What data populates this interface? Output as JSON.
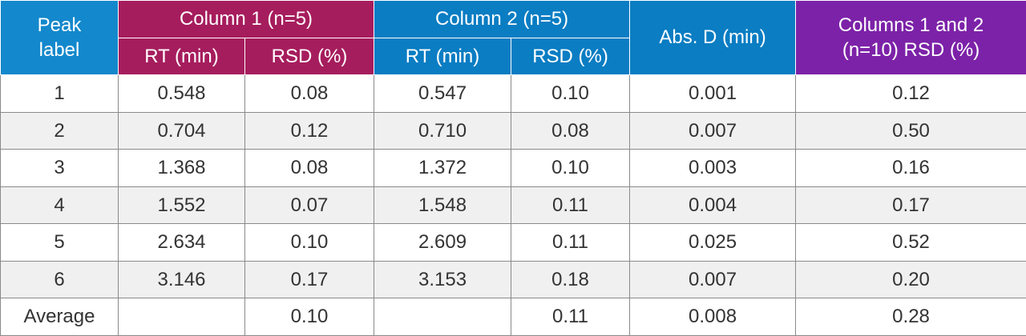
{
  "table": {
    "header": {
      "peak_label": "Peak label",
      "column1": "Column 1 (n=5)",
      "column2": "Column 2 (n=5)",
      "abs_d": "Abs. D (min)",
      "combined": "Columns 1 and 2 (n=10) RSD (%)",
      "subheaders": [
        "RT (min)",
        "RSD (%)",
        "RT (min)",
        "RSD (%)"
      ]
    },
    "rows": [
      [
        "1",
        "0.548",
        "0.08",
        "0.547",
        "0.10",
        "0.001",
        "0.12"
      ],
      [
        "2",
        "0.704",
        "0.12",
        "0.710",
        "0.08",
        "0.007",
        "0.50"
      ],
      [
        "3",
        "1.368",
        "0.08",
        "1.372",
        "0.10",
        "0.003",
        "0.16"
      ],
      [
        "4",
        "1.552",
        "0.07",
        "1.548",
        "0.11",
        "0.004",
        "0.17"
      ],
      [
        "5",
        "2.634",
        "0.10",
        "2.609",
        "0.11",
        "0.025",
        "0.52"
      ],
      [
        "6",
        "3.146",
        "0.17",
        "3.153",
        "0.18",
        "0.007",
        "0.20"
      ],
      [
        "Average",
        null,
        "0.10",
        null,
        "0.11",
        "0.008",
        "0.28"
      ]
    ]
  }
}
